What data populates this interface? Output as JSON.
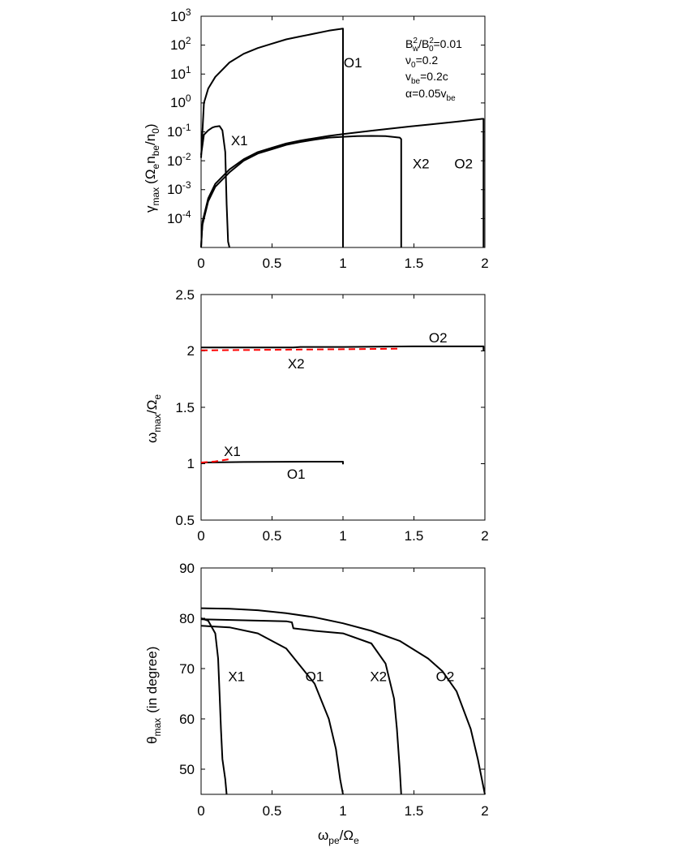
{
  "chart_data": [
    {
      "type": "line",
      "ylabel_main": "γ",
      "ylabel_sub": "max",
      "ylabel_paren": "(Ω",
      "ylabel_rest": "n",
      "ylabel_sub2": "be",
      "ylabel_end": "/n",
      "ylabel_sub3": "0",
      "ylabel_close": ")",
      "ylabel_e": "e",
      "xlabel": "",
      "yscale": "log",
      "xlim": [
        0,
        2
      ],
      "ylim_log10": [
        -5,
        3
      ],
      "xticks": [
        "0",
        "0.5",
        "1",
        "1.5",
        "2"
      ],
      "yticks": [
        {
          "base": "10",
          "exp": "3"
        },
        {
          "base": "10",
          "exp": "2"
        },
        {
          "base": "10",
          "exp": "1"
        },
        {
          "base": "10",
          "exp": "0"
        },
        {
          "base": "10",
          "exp": "-1"
        },
        {
          "base": "10",
          "exp": "-2"
        },
        {
          "base": "10",
          "exp": "-3"
        },
        {
          "base": "10",
          "exp": "-4"
        }
      ],
      "params": {
        "p1_a": "B",
        "p1_a_sup": "2",
        "p1_a_sub": "w",
        "p1_b": "/B",
        "p1_b_sup": "2",
        "p1_b_sub": "0",
        "p1_c": "=0.01",
        "p2": "ν",
        "p2_sub": "0",
        "p2_rest": "=0.2",
        "p3": "v",
        "p3_sub": "be",
        "p3_rest": "=0.2c",
        "p4": "α=0.05v",
        "p4_sub": "be"
      },
      "series": [
        {
          "name": "O1",
          "x": [
            0,
            0.02,
            0.05,
            0.1,
            0.2,
            0.3,
            0.4,
            0.5,
            0.6,
            0.7,
            0.8,
            0.9,
            1.0,
            1.0
          ],
          "y_log10": [
            -1.9,
            0.0,
            0.5,
            0.9,
            1.4,
            1.7,
            1.9,
            2.05,
            2.2,
            2.3,
            2.4,
            2.5,
            2.57,
            -5
          ]
        },
        {
          "name": "X1",
          "x": [
            0,
            0.02,
            0.05,
            0.08,
            0.1,
            0.13,
            0.15,
            0.17,
            0.18,
            0.19,
            0.2
          ],
          "y_log10": [
            -1.8,
            -1.1,
            -0.95,
            -0.85,
            -0.82,
            -0.8,
            -0.95,
            -1.7,
            -3.5,
            -4.8,
            -5
          ]
        },
        {
          "name": "X2",
          "x": [
            0,
            0.005,
            0.01,
            0.05,
            0.1,
            0.2,
            0.3,
            0.4,
            0.5,
            0.6,
            0.7,
            0.8,
            0.9,
            1.0,
            1.1,
            1.2,
            1.3,
            1.4,
            1.41,
            1.41
          ],
          "y_log10": [
            -5,
            -4.5,
            -4.2,
            -3.4,
            -2.9,
            -2.4,
            -2.0,
            -1.75,
            -1.6,
            -1.45,
            -1.35,
            -1.27,
            -1.2,
            -1.17,
            -1.15,
            -1.14,
            -1.15,
            -1.2,
            -1.25,
            -5
          ]
        },
        {
          "name": "O2",
          "x": [
            0,
            0.005,
            0.01,
            0.05,
            0.1,
            0.2,
            0.3,
            0.4,
            0.5,
            0.6,
            0.7,
            0.8,
            0.9,
            1.0,
            1.2,
            1.4,
            1.6,
            1.8,
            1.98,
            1.99,
            1.99
          ],
          "y_log10": [
            -5,
            -4.5,
            -4.1,
            -3.3,
            -2.8,
            -2.3,
            -1.95,
            -1.7,
            -1.55,
            -1.4,
            -1.3,
            -1.22,
            -1.14,
            -1.08,
            -0.96,
            -0.85,
            -0.75,
            -0.65,
            -0.55,
            -0.55,
            -5
          ]
        }
      ],
      "curve_labels": [
        {
          "text": "O1",
          "x": 1.07,
          "y_log10": 1.4
        },
        {
          "text": "X1",
          "x": 0.27,
          "y_log10": -1.3
        },
        {
          "text": "X2",
          "x": 1.55,
          "y_log10": -2.1
        },
        {
          "text": "O2",
          "x": 1.85,
          "y_log10": -2.1
        }
      ]
    },
    {
      "type": "line",
      "ylabel_main": "ω",
      "ylabel_sub": "max",
      "ylabel_slash": "/Ω",
      "ylabel_sub2": "e",
      "xlabel": "",
      "xlim": [
        0,
        2
      ],
      "ylim": [
        0.5,
        2.5
      ],
      "xticks": [
        "0",
        "0.5",
        "1",
        "1.5",
        "2"
      ],
      "yticks": [
        "2.5",
        "2",
        "1.5",
        "1",
        "0.5"
      ],
      "series": [
        {
          "name": "O1",
          "style": "solid",
          "color": "#000000",
          "x": [
            0,
            0.3,
            0.6,
            1.0,
            1.0
          ],
          "y": [
            1.01,
            1.015,
            1.017,
            1.018,
            0.995
          ]
        },
        {
          "name": "X1",
          "style": "dashed",
          "color": "#ff0000",
          "x": [
            0,
            0.1,
            0.2
          ],
          "y": [
            1.01,
            1.02,
            1.04
          ]
        },
        {
          "name": "O2",
          "style": "solid",
          "color": "#000000",
          "x": [
            0,
            0.5,
            0.65,
            0.7,
            1.0,
            1.5,
            1.99,
            1.99
          ],
          "y": [
            2.03,
            2.03,
            2.03,
            2.035,
            2.035,
            2.04,
            2.04,
            2.0
          ]
        },
        {
          "name": "X2",
          "style": "dashed",
          "color": "#ff0000",
          "x": [
            0,
            0.5,
            1.0,
            1.41
          ],
          "y": [
            2.005,
            2.01,
            2.015,
            2.02
          ]
        }
      ],
      "curve_labels": [
        {
          "text": "O2",
          "x": 1.67,
          "y": 2.12
        },
        {
          "text": "X2",
          "x": 0.67,
          "y": 1.89
        },
        {
          "text": "X1",
          "x": 0.22,
          "y": 1.11
        },
        {
          "text": "O1",
          "x": 0.67,
          "y": 0.91
        }
      ]
    },
    {
      "type": "line",
      "ylabel_main": "θ",
      "ylabel_sub": "max",
      "ylabel_rest": "(in degree)",
      "xlabel_main": "ω",
      "xlabel_sub": "pe",
      "xlabel_slash": "/Ω",
      "xlabel_sub2": "e",
      "xlim": [
        0,
        2
      ],
      "ylim": [
        45,
        90
      ],
      "xticks": [
        "0",
        "0.5",
        "1",
        "1.5",
        "2"
      ],
      "yticks": [
        "90",
        "80",
        "70",
        "60",
        "50"
      ],
      "series": [
        {
          "name": "X1",
          "x": [
            0,
            0.05,
            0.1,
            0.12,
            0.13,
            0.14,
            0.15,
            0.17,
            0.18
          ],
          "y": [
            80,
            79.5,
            77,
            72,
            65,
            58,
            52,
            48,
            45
          ]
        },
        {
          "name": "O1",
          "x": [
            0,
            0.2,
            0.4,
            0.6,
            0.8,
            0.9,
            0.95,
            0.98,
            1.0
          ],
          "y": [
            78.5,
            78.2,
            77,
            74,
            67,
            60,
            54,
            48,
            45
          ]
        },
        {
          "name": "X2",
          "x": [
            0,
            0.3,
            0.6,
            0.64,
            0.65,
            0.8,
            1.0,
            1.2,
            1.3,
            1.36,
            1.38,
            1.4,
            1.41
          ],
          "y": [
            79.8,
            79.6,
            79.4,
            79.2,
            78,
            77.5,
            77,
            75,
            71,
            64,
            58,
            50,
            45
          ]
        },
        {
          "name": "O2",
          "x": [
            0,
            0.2,
            0.4,
            0.6,
            0.8,
            1.0,
            1.2,
            1.4,
            1.6,
            1.7,
            1.8,
            1.9,
            1.95,
            2.0
          ],
          "y": [
            82,
            81.9,
            81.6,
            81,
            80.2,
            79,
            77.5,
            75.5,
            72,
            69.5,
            65.5,
            58,
            52,
            45
          ]
        }
      ],
      "curve_labels": [
        {
          "text": "X1",
          "x": 0.25,
          "y": 68.5
        },
        {
          "text": "O1",
          "x": 0.8,
          "y": 68.5
        },
        {
          "text": "X2",
          "x": 1.25,
          "y": 68.5
        },
        {
          "text": "O2",
          "x": 1.72,
          "y": 68.5
        }
      ]
    }
  ]
}
